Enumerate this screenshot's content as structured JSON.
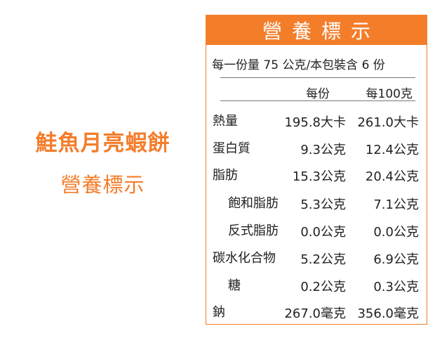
{
  "product": {
    "name": "鮭魚月亮蝦餅",
    "subtitle": "營養標示"
  },
  "label": {
    "title": "營養標示",
    "serving": "每一份量 75 公克/本包裝含 6 份",
    "col_per_serving": "每份",
    "col_per_100g": "每100克",
    "rows": [
      {
        "name": "熱量",
        "per_serving": "195.8大卡",
        "per_100g": "261.0大卡"
      },
      {
        "name": "蛋白質",
        "per_serving": "9.3公克",
        "per_100g": "12.4公克"
      },
      {
        "name": "脂肪",
        "per_serving": "15.3公克",
        "per_100g": "20.4公克"
      },
      {
        "name": "飽和脂肪",
        "per_serving": "5.3公克",
        "per_100g": "7.1公克"
      },
      {
        "name": "反式脂肪",
        "per_serving": "0.0公克",
        "per_100g": "0.0公克"
      },
      {
        "name": "碳水化合物",
        "per_serving": "5.2公克",
        "per_100g": "6.9公克"
      },
      {
        "name": "糖",
        "per_serving": "0.2公克",
        "per_100g": "0.3公克"
      },
      {
        "name": "鈉",
        "per_serving": "267.0毫克",
        "per_100g": "356.0毫克"
      }
    ]
  },
  "colors": {
    "accent": "#f47d2a"
  }
}
